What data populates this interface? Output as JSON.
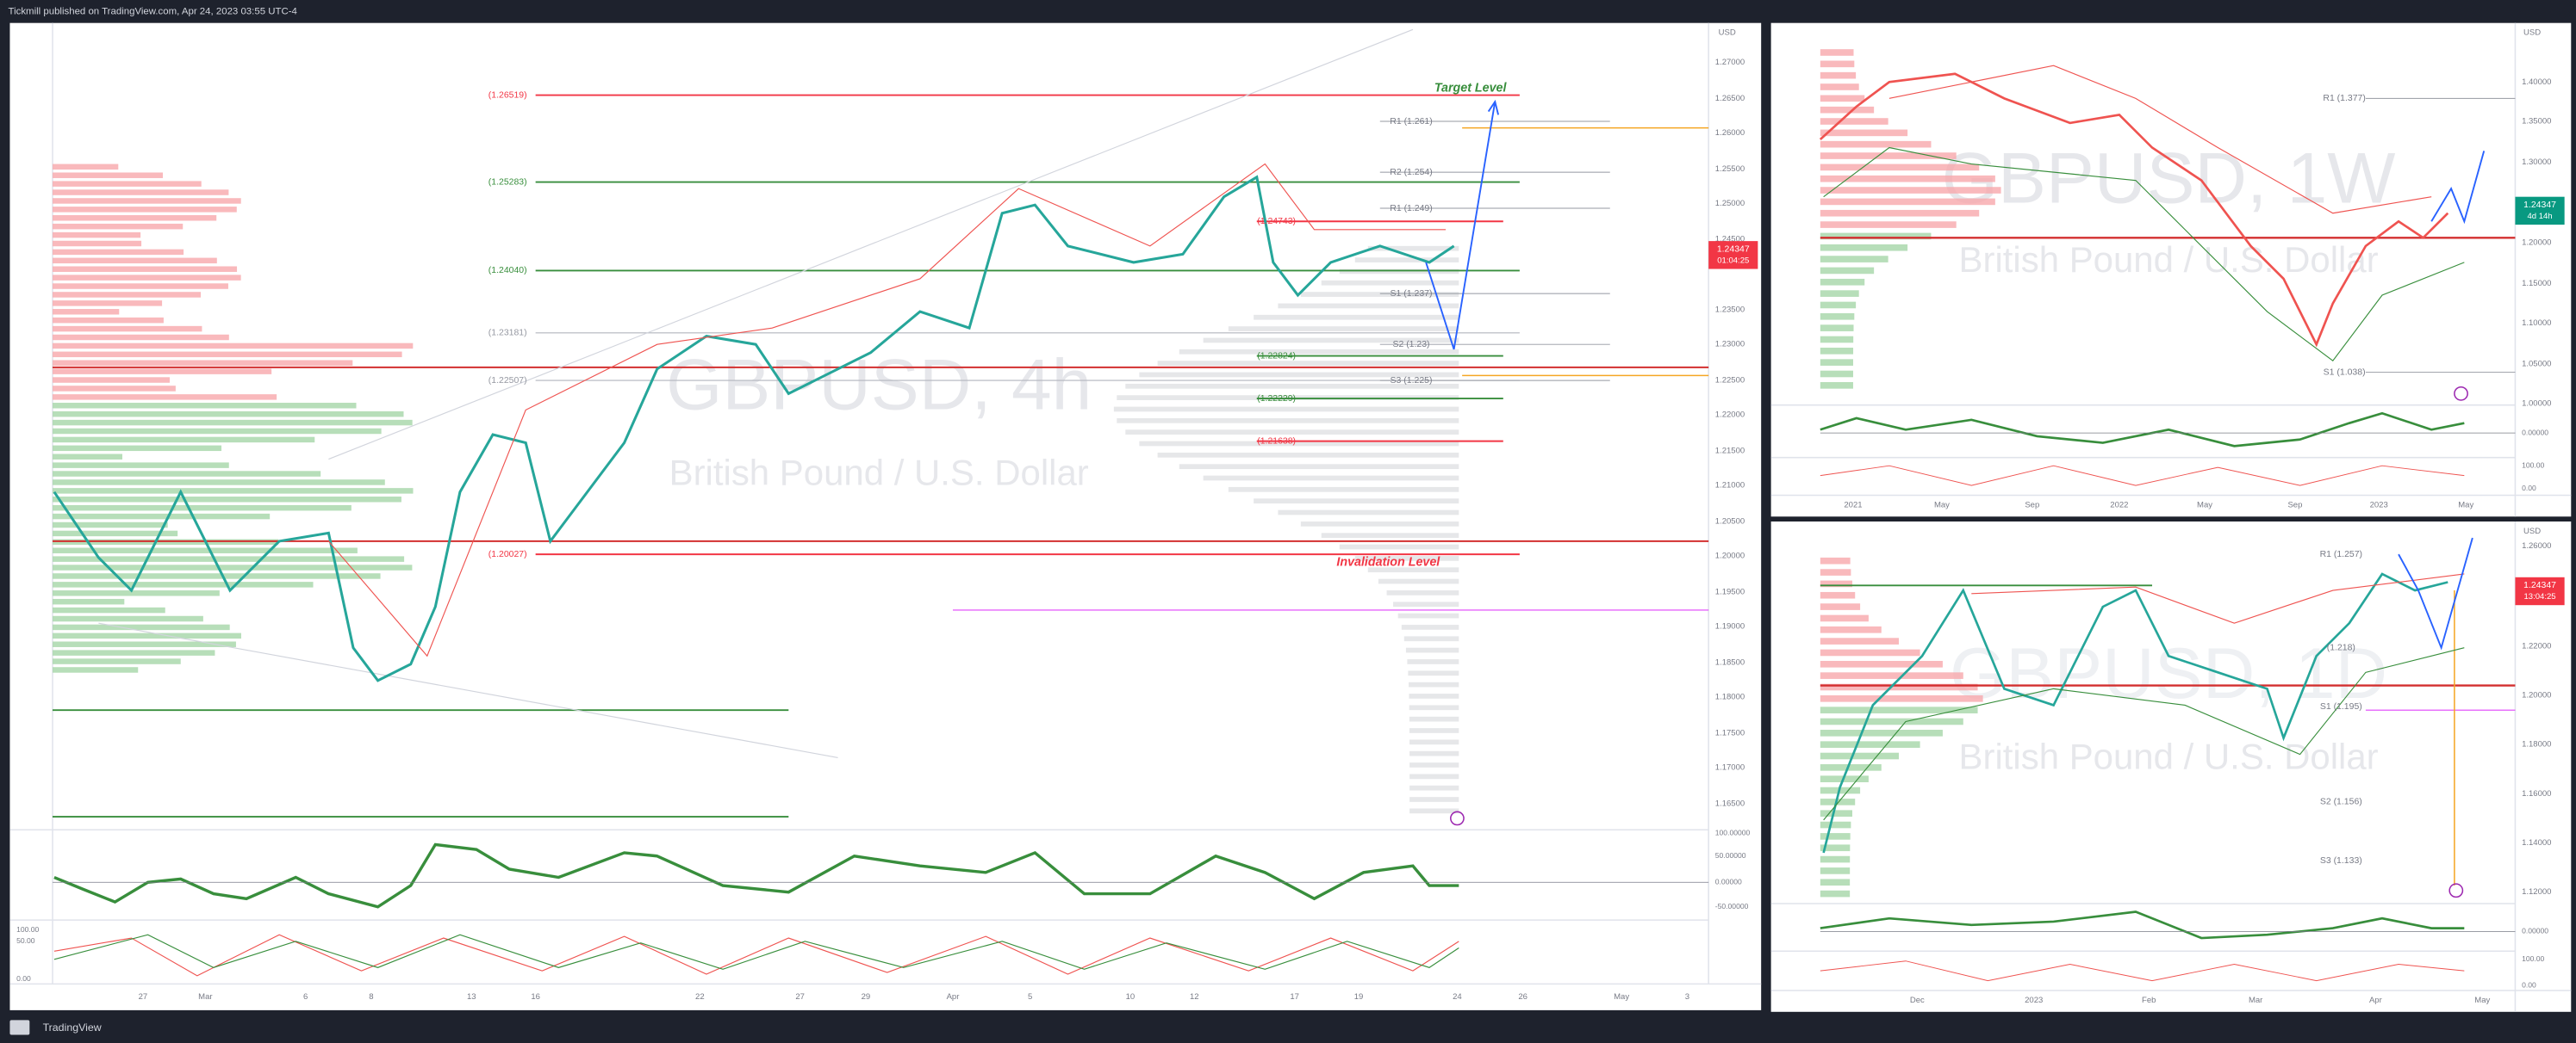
{
  "header": {
    "title": "Tickmill published on TradingView.com, Apr 24, 2023 03:55 UTC-4"
  },
  "main_chart": {
    "symbol": "GBPUSD, 4h",
    "description": "British Pound / U.S. Dollar",
    "fib_levels": [
      "(1.26519)",
      "(1.25283)",
      "(1.24040)",
      "(1.23181)",
      "(1.22507)",
      "(1.20027)"
    ],
    "inner_levels": [
      "(1.24743)",
      "(1.22824)",
      "(1.22229)",
      "(1.21638)"
    ],
    "pivots": [
      "R1 (1.261)",
      "R2 (1.254)",
      "R1 (1.249)",
      "S1 (1.237)",
      "S2 (1.23)",
      "S3 (1.225)"
    ],
    "annotations": [
      "Target Level",
      "Invalidation Level"
    ],
    "price_axis": {
      "currency": "USD",
      "ticks": [
        "1.27000",
        "1.26500",
        "1.26000",
        "1.25500",
        "1.25000",
        "1.24500",
        "1.23500",
        "1.23000",
        "1.22500",
        "1.22000",
        "1.21500",
        "1.21000",
        "1.20500",
        "1.20000",
        "1.19500",
        "1.19000",
        "1.18500",
        "1.18000",
        "1.17500",
        "1.17000",
        "1.16500"
      ]
    },
    "price_tag": {
      "price": "1.24347",
      "countdown": "01:04:25"
    },
    "oscillator_ticks": [
      "100.00000",
      "50.00000",
      "0.00000",
      "-50.00000",
      "100.00",
      "50.00",
      "0.00"
    ],
    "time_axis": [
      "27",
      "Mar",
      "6",
      "8",
      "13",
      "16",
      "22",
      "27",
      "29",
      "Apr",
      "5",
      "10",
      "12",
      "17",
      "19",
      "24",
      "26",
      "May",
      "3"
    ]
  },
  "weekly_chart": {
    "symbol": "GBPUSD, 1W",
    "description": "British Pound / U.S. Dollar",
    "pivots": [
      "R1 (1.377)",
      "S1 (1.038)"
    ],
    "price_axis": {
      "currency": "USD",
      "ticks": [
        "1.40000",
        "1.35000",
        "1.30000",
        "1.20000",
        "1.15000",
        "1.10000",
        "1.05000",
        "1.00000"
      ]
    },
    "price_tag": {
      "price": "1.24347",
      "countdown": "4d 14h"
    },
    "oscillator_ticks": [
      "0.00000",
      "100.00",
      "0.00"
    ],
    "time_axis": [
      "2021",
      "May",
      "Sep",
      "2022",
      "May",
      "Sep",
      "2023",
      "May"
    ]
  },
  "daily_chart": {
    "symbol": "GBPUSD, 1D",
    "description": "British Pound / U.S. Dollar",
    "pivots": [
      "R1 (1.257)",
      "(1.218)",
      "S1 (1.195)",
      "S2 (1.156)",
      "S3 (1.133)"
    ],
    "price_axis": {
      "currency": "USD",
      "ticks": [
        "1.26000",
        "1.22000",
        "1.20000",
        "1.18000",
        "1.16000",
        "1.14000",
        "1.12000"
      ]
    },
    "price_tag": {
      "price": "1.24347",
      "countdown": "13:04:25"
    },
    "oscillator_ticks": [
      "0.00000",
      "100.00",
      "0.00"
    ],
    "time_axis": [
      "Dec",
      "2023",
      "Feb",
      "Mar",
      "Apr",
      "May"
    ]
  },
  "footer": {
    "brand": "TradingView"
  }
}
